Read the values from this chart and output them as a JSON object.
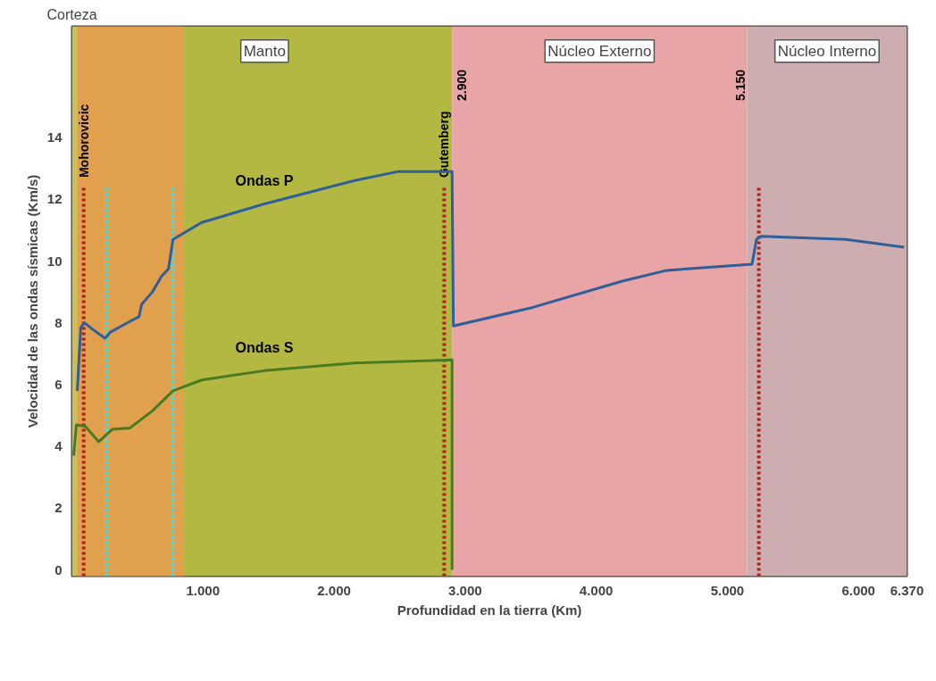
{
  "chart_data": {
    "type": "line",
    "xlabel": "Profundidad en la tierra (Km)",
    "ylabel": "Velocidad de las ondas sísmicas (Km/s)",
    "xlim": [
      0,
      6370
    ],
    "ylim": [
      -0.2,
      17.6
    ],
    "xticks": [
      {
        "value": 1000,
        "label": "1.000"
      },
      {
        "value": 2000,
        "label": "2.000"
      },
      {
        "value": 3000,
        "label": "3.000"
      },
      {
        "value": 4000,
        "label": "4.000"
      },
      {
        "value": 5000,
        "label": "5.000"
      },
      {
        "value": 6000,
        "label": "6.000"
      },
      {
        "value": 6370,
        "label": "6.370"
      }
    ],
    "yticks": [
      0,
      2,
      4,
      6,
      8,
      10,
      12,
      14
    ],
    "grid": false,
    "legend": false,
    "line_style": "solid",
    "marker": "none",
    "series": [
      {
        "name": "Ondas P",
        "color": "#2e5f9a",
        "x": [
          41,
          68,
          96,
          171,
          253,
          294,
          444,
          512,
          532,
          614,
          683,
          737,
          771,
          990,
          1468,
          2150,
          2491,
          2900,
          2910,
          3515,
          4198,
          4539,
          5188,
          5222,
          5256,
          5904,
          6348
        ],
        "values": [
          5.8,
          7.85,
          8.0,
          7.75,
          7.5,
          7.7,
          8.05,
          8.2,
          8.6,
          9.0,
          9.5,
          9.75,
          10.7,
          11.25,
          11.85,
          12.6,
          12.9,
          12.9,
          7.9,
          8.5,
          9.35,
          9.7,
          9.9,
          10.7,
          10.8,
          10.7,
          10.45
        ]
      },
      {
        "name": "Ondas S",
        "color": "#4a7a20",
        "x": [
          14,
          34,
          102,
          205,
          307,
          444,
          614,
          771,
          990,
          1468,
          2150,
          2900,
          2900
        ],
        "values": [
          3.7,
          4.7,
          4.65,
          4.15,
          4.55,
          4.6,
          5.15,
          5.8,
          6.15,
          6.45,
          6.7,
          6.8,
          0
        ]
      }
    ],
    "bands": [
      {
        "axis": "x",
        "from": 0,
        "to": 40,
        "label": "Corteza",
        "color": "#c9c05a"
      },
      {
        "axis": "x",
        "from": 40,
        "to": 2900,
        "label": "Manto",
        "color": "#b3b843"
      },
      {
        "axis": "x",
        "from": 40,
        "to": 850,
        "label": null,
        "color": "#e0a04e"
      },
      {
        "axis": "x",
        "from": 2900,
        "to": 5150,
        "label": "Núcleo Externo",
        "color": "#e9a4a6"
      },
      {
        "axis": "x",
        "from": 5150,
        "to": 6370,
        "label": "Núcleo Interno",
        "color": "#cdadaf"
      }
    ],
    "ref_lines": [
      {
        "axis": "x",
        "value": 90,
        "label": "Mohorovicic",
        "color": "#b0201a",
        "line_style": "dotted"
      },
      {
        "axis": "x",
        "value": 265,
        "label": null,
        "color": "#40e0e0",
        "line_style": "dotted"
      },
      {
        "axis": "x",
        "value": 770,
        "label": null,
        "color": "#40e0e0",
        "line_style": "dotted"
      },
      {
        "axis": "x",
        "value": 2840,
        "label": "Gutemberg",
        "color": "#b0201a",
        "line_style": "dotted"
      },
      {
        "axis": "x",
        "value": 5240,
        "label": null,
        "color": "#b0201a",
        "line_style": "dotted"
      }
    ],
    "annotations": [
      {
        "text": "2.900",
        "x": 2900,
        "y": 16.2
      },
      {
        "text": "5.150",
        "x": 5150,
        "y": 16.2
      }
    ]
  }
}
